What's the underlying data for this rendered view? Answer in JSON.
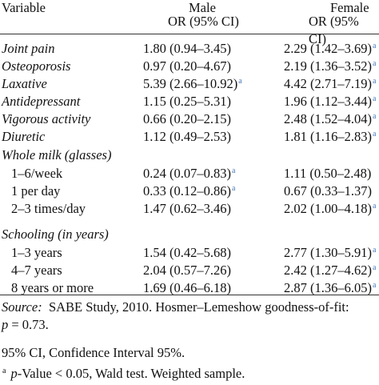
{
  "header": {
    "variable": "Variable",
    "male": "Male",
    "female": "Female",
    "male_sub": "OR (95% CI)",
    "female_sub": "OR (95% CI)"
  },
  "groups": [
    {
      "title": "",
      "rows": [
        {
          "label": "Joint pain",
          "male": "1.80 (0.94–3.45)",
          "male_sup": "",
          "female": "2.29 (1.42–3.69)",
          "female_sup": "a"
        },
        {
          "label": "Osteoporosis",
          "male": "0.97 (0.20–4.67)",
          "male_sup": "",
          "female": "2.19 (1.36–3.52)",
          "female_sup": "a"
        },
        {
          "label": "Laxative",
          "male": "5.39 (2.66–10.92)",
          "male_sup": "a",
          "female": "4.42 (2.71–7.19)",
          "female_sup": "a"
        },
        {
          "label": "Antidepressant",
          "male": "1.15 (0.25–5.31)",
          "male_sup": "",
          "female": "1.96 (1.12–3.44)",
          "female_sup": "a"
        },
        {
          "label": "Vigorous activity",
          "male": "0.66 (0.20–2.15)",
          "male_sup": "",
          "female": "2.48 (1.52–4.04)",
          "female_sup": "a"
        },
        {
          "label": "Diuretic",
          "male": "1.12 (0.49–2.53)",
          "male_sup": "",
          "female": "1.81 (1.16–2.83)",
          "female_sup": "a"
        }
      ]
    },
    {
      "title": "Whole milk (glasses)",
      "rows": [
        {
          "label": "1–6/week",
          "male": "0.24 (0.07–0.83)",
          "male_sup": "a",
          "female": "1.11 (0.50–2.48)",
          "female_sup": ""
        },
        {
          "label": "1 per day",
          "male": "0.33 (0.12–0.86)",
          "male_sup": "a",
          "female": "0.67 (0.33–1.37)",
          "female_sup": ""
        },
        {
          "label": "2–3 times/day",
          "male": "1.47 (0.62–3.46)",
          "male_sup": "",
          "female": "2.02 (1.00–4.18)",
          "female_sup": "a"
        }
      ]
    },
    {
      "title": "Schooling (in years)",
      "rows": [
        {
          "label": "1–3 years",
          "male": "1.54 (0.42–5.68)",
          "male_sup": "",
          "female": "2.77 (1.30–5.91)",
          "female_sup": "a"
        },
        {
          "label": "4–7 years",
          "male": "2.04 (0.57–7.26)",
          "male_sup": "",
          "female": "2.42 (1.27–4.62)",
          "female_sup": "a"
        },
        {
          "label": "8 years or more",
          "male": "1.69 (0.46–6.18)",
          "male_sup": "",
          "female": "2.87 (1.36–6.05)",
          "female_sup": "a"
        }
      ]
    }
  ],
  "footnotes": {
    "source_label": "Source:",
    "source_text": "SABE Study, 2010. Hosmer–Lemeshow goodness-of-fit:",
    "p_label": "p",
    "p_value": "= 0.73.",
    "ci_note": "95% CI, Confidence Interval 95%.",
    "a_mark": "a",
    "a_p": "p",
    "a_text": "-Value < 0.05, Wald test. Weighted sample."
  }
}
